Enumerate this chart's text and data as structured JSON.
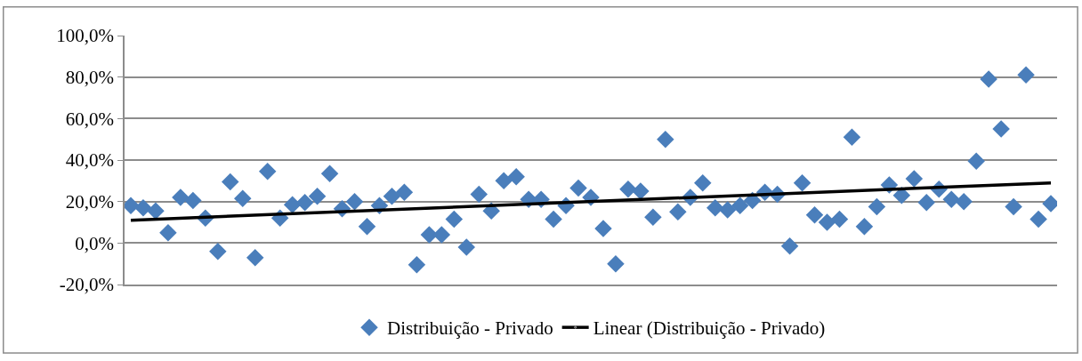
{
  "chart_data": {
    "type": "scatter",
    "categories": [
      null,
      null,
      null,
      null,
      null,
      null,
      null,
      null,
      null,
      null,
      null,
      null,
      null,
      null,
      null,
      null,
      null,
      null,
      null,
      null,
      null,
      null,
      null,
      null,
      null,
      null,
      null,
      null,
      null,
      null,
      null,
      null,
      null,
      null,
      null,
      null,
      null,
      null,
      null,
      null,
      null,
      null,
      null,
      null,
      null,
      null,
      null,
      null,
      null,
      null,
      null,
      null,
      null,
      null,
      null,
      null,
      null,
      null,
      null,
      null,
      null,
      null,
      null,
      null,
      null,
      null,
      null,
      null,
      null,
      null,
      null,
      null,
      null,
      null,
      null
    ],
    "series": [
      {
        "name": "Distribuição - Privado",
        "marker": "diamond",
        "color": "#4a7ebb",
        "values": [
          18,
          17,
          15.5,
          5,
          22,
          20.5,
          12,
          -4,
          29.5,
          21.5,
          -7,
          34.5,
          12,
          18.5,
          19.5,
          22.5,
          33.5,
          16.5,
          20,
          8,
          18,
          22.5,
          24.5,
          -10.5,
          4,
          4,
          11.5,
          -2,
          23.5,
          15.5,
          30,
          32,
          21,
          21,
          11.5,
          18,
          26.5,
          22,
          7,
          -10,
          26,
          25,
          12.5,
          50,
          15,
          22,
          29,
          17,
          16,
          18,
          20.5,
          24.5,
          23.5,
          -1.5,
          29,
          13.5,
          10,
          11.5,
          51,
          8,
          17.5,
          28,
          23,
          31,
          19.5,
          26,
          21,
          20,
          39.5,
          79,
          55,
          17.5,
          81,
          11.5,
          19
        ]
      },
      {
        "name": "Linear (Distribuição - Privado)",
        "type": "line",
        "marker": "none",
        "line_style": "solid",
        "color": "#000000",
        "values": [
          11,
          null,
          null,
          null,
          null,
          null,
          null,
          null,
          null,
          null,
          null,
          null,
          null,
          null,
          null,
          null,
          null,
          null,
          null,
          null,
          null,
          null,
          null,
          null,
          null,
          null,
          null,
          null,
          null,
          null,
          null,
          null,
          null,
          null,
          null,
          null,
          null,
          null,
          null,
          null,
          null,
          null,
          null,
          null,
          null,
          null,
          null,
          null,
          null,
          null,
          null,
          null,
          null,
          null,
          null,
          null,
          null,
          null,
          null,
          null,
          null,
          null,
          null,
          null,
          null,
          null,
          null,
          null,
          null,
          null,
          null,
          null,
          null,
          null,
          29
        ]
      }
    ],
    "ylim": [
      -20,
      100
    ],
    "yticks": [
      {
        "value": -20,
        "label": "-20,0%"
      },
      {
        "value": 0,
        "label": "0,0%"
      },
      {
        "value": 20,
        "label": "20,0%"
      },
      {
        "value": 40,
        "label": "40,0%"
      },
      {
        "value": 60,
        "label": "60,0%"
      },
      {
        "value": 80,
        "label": "80,0%"
      },
      {
        "value": 100,
        "label": "100,0%"
      }
    ],
    "grid": "y",
    "legend": "bottom",
    "tick_labels": "y"
  }
}
